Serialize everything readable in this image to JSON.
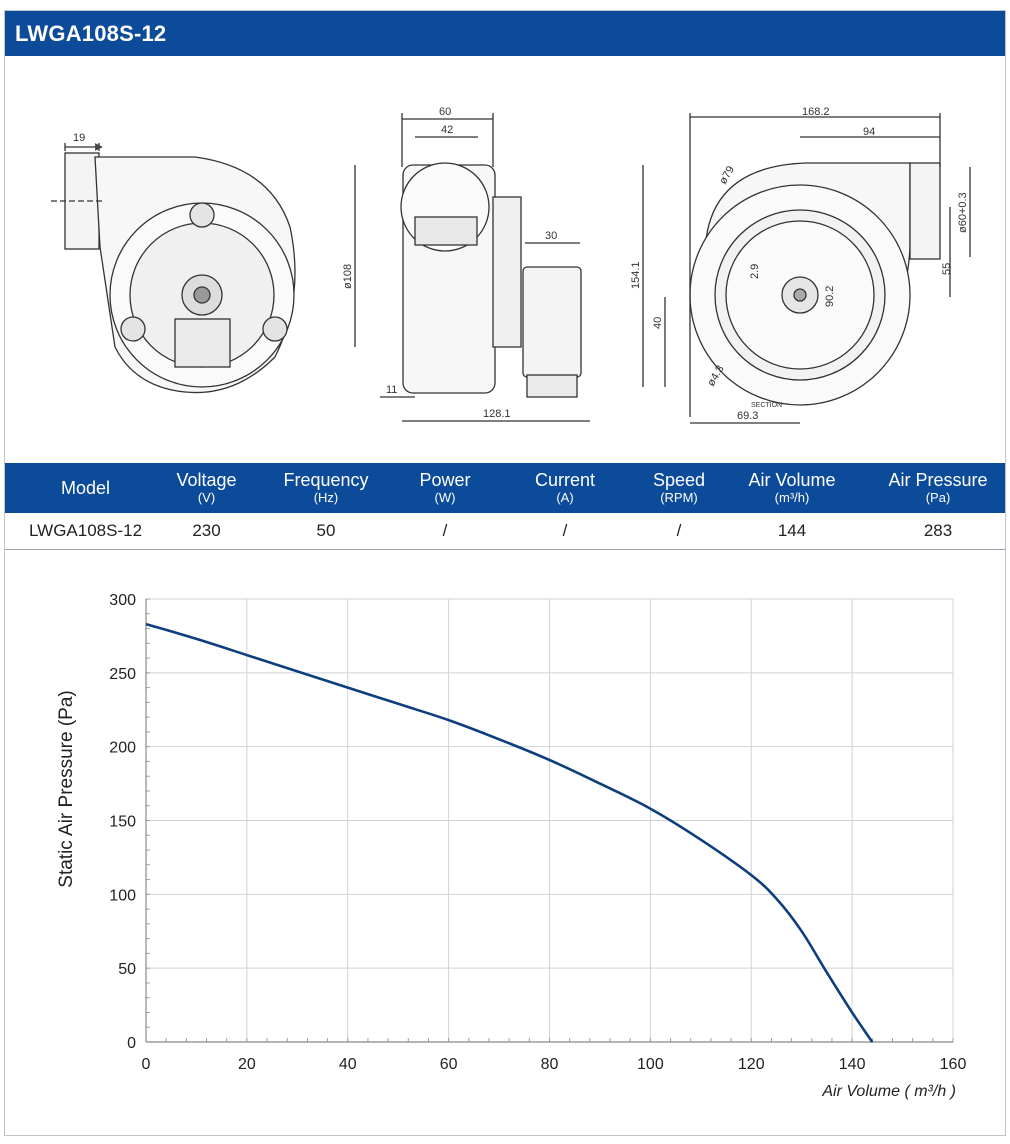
{
  "header": {
    "title": "LWGA108S-12"
  },
  "drawing_labels": {
    "side_19": "19",
    "top_60": "60",
    "top_42": "42",
    "dia_108": "ø108",
    "w_30": "30",
    "w_11": "11",
    "w_128": "128.1",
    "w_168": "168.2",
    "w_94": "94",
    "dia_79": "ø79",
    "h_154": "154.1",
    "h_40": "40",
    "d_29": "2.9",
    "d_902": "90.2",
    "dia_60": "ø60+0.3",
    "h_55": "55",
    "dia_43": "ø4.3",
    "section": "SECTION",
    "w_693": "69.3"
  },
  "specs": {
    "columns": [
      {
        "name": "Model",
        "unit": ""
      },
      {
        "name": "Voltage",
        "unit": "(V)"
      },
      {
        "name": "Frequency",
        "unit": "(Hz)"
      },
      {
        "name": "Power",
        "unit": "(W)"
      },
      {
        "name": "Current",
        "unit": "(A)"
      },
      {
        "name": "Speed",
        "unit": "(RPM)"
      },
      {
        "name": "Air Volume",
        "unit": "(m³/h)"
      },
      {
        "name": "Air Pressure",
        "unit": "(Pa)"
      }
    ],
    "row": [
      "LWGA108S-12",
      "230",
      "50",
      "/",
      "/",
      "/",
      "144",
      "283"
    ]
  },
  "chart_data": {
    "type": "line",
    "xlabel": "Air Volume ( m³/h )",
    "ylabel": "Static Air Pressure  (Pa)",
    "xlim": [
      0,
      160
    ],
    "ylim": [
      0,
      300
    ],
    "xticks": [
      0,
      20,
      40,
      60,
      80,
      100,
      120,
      140,
      160
    ],
    "yticks": [
      0,
      50,
      100,
      150,
      200,
      250,
      300
    ],
    "grid": true,
    "line_color": "#0d3f7e",
    "series": [
      {
        "x": [
          0,
          10,
          20,
          30,
          40,
          50,
          60,
          70,
          80,
          90,
          100,
          110,
          120,
          125,
          130,
          135,
          140,
          144
        ],
        "values": [
          283,
          273,
          262,
          251,
          240,
          229,
          218,
          205,
          191,
          175,
          158,
          137,
          113,
          97,
          75,
          47,
          20,
          0
        ]
      }
    ]
  }
}
